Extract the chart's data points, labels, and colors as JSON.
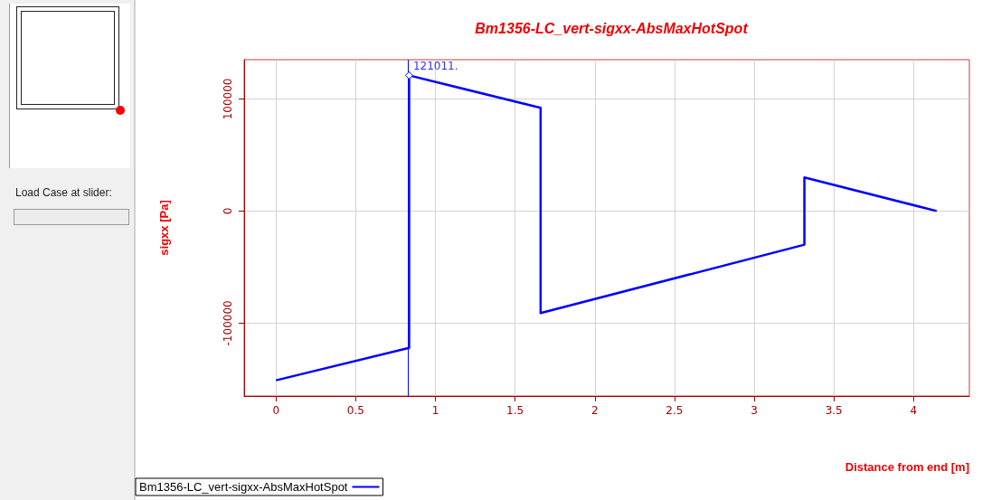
{
  "chart_data": {
    "type": "line",
    "title": "Bm1356-LC_vert-sigxx-AbsMaxHotSpot",
    "xlabel": "Distance from end [m]",
    "ylabel": "sigxx [Pa]",
    "series": [
      {
        "name": "Bm1356-LC_vert-sigxx-AbsMaxHotSpot",
        "color": "#0000ff",
        "x": [
          0,
          0.835,
          0.835,
          1.66,
          1.66,
          3.315,
          3.315,
          4.145
        ],
        "values": [
          -151000,
          -122000,
          121011,
          92000,
          -91000,
          -30000,
          30000,
          0
        ]
      }
    ],
    "xlim": [
      -0.2,
      4.35
    ],
    "ylim": [
      -165000,
      135000
    ],
    "xticks": [
      0,
      0.5,
      1,
      1.5,
      2,
      2.5,
      3,
      3.5,
      4
    ],
    "yticks": [
      -100000,
      0,
      100000
    ],
    "grid": true,
    "legend": "bottom left",
    "ref_lines": [
      {
        "axis": "x",
        "value": 0.835,
        "color": "#0000ff"
      }
    ],
    "annotations": [
      "Load Case at slider:",
      {
        "text": "121011.",
        "x": 0.835,
        "y": 121011
      }
    ]
  }
}
